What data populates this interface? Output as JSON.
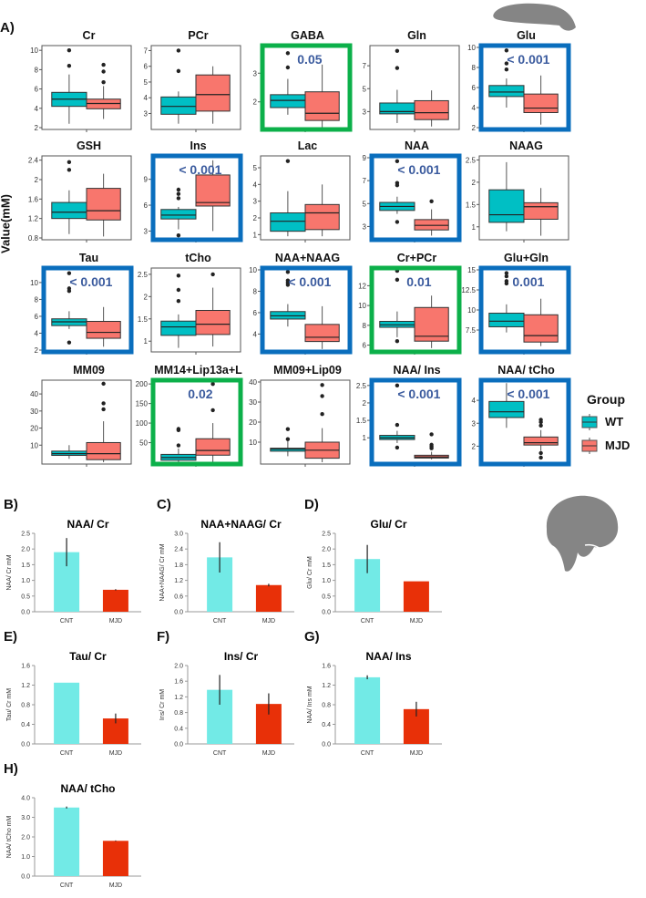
{
  "panel_labels": {
    "A": "A)",
    "B": "B)",
    "C": "C)",
    "D": "D)",
    "E": "E)",
    "F": "F)",
    "G": "G)",
    "H": "H)"
  },
  "y_axis_label": "Value(mM)",
  "legend": {
    "title": "Group",
    "items": [
      {
        "label": "WT",
        "color": "#00bfc4"
      },
      {
        "label": "MJD",
        "color": "#f8766d"
      }
    ]
  },
  "colors": {
    "wt": "#00bfc4",
    "mjd": "#f8766d",
    "sig_blue": "#0a6ebd",
    "sig_green": "#0cb04a",
    "pval_text": "#3b5b9e",
    "cnt_bar": "#72eae6",
    "mjd_bar": "#e83008",
    "brain": "#858585"
  },
  "chart_data": [
    {
      "type": "boxplot",
      "groups": [
        "WT",
        "MJD"
      ],
      "panels": [
        {
          "title": "Cr",
          "ylim": [
            2,
            10.3
          ],
          "ticks": [
            2,
            4,
            6,
            8,
            10
          ],
          "pval": null,
          "highlight": null,
          "wt": {
            "min": 2.4,
            "q1": 4.2,
            "median": 4.95,
            "q3": 5.65,
            "max": 7.5,
            "outliers": [
              8.4,
              10
            ]
          },
          "mjd": {
            "min": 2.9,
            "q1": 3.95,
            "median": 4.5,
            "q3": 4.95,
            "max": 6.3,
            "outliers": [
              6.7,
              7.8,
              8.5
            ]
          }
        },
        {
          "title": "PCr",
          "ylim": [
            2.1,
            7.2
          ],
          "ticks": [
            3,
            4,
            5,
            6,
            7
          ],
          "pval": null,
          "highlight": null,
          "wt": {
            "min": 2.35,
            "q1": 2.95,
            "median": 3.45,
            "q3": 4.05,
            "max": 4.4,
            "outliers": [
              5.7,
              7
            ]
          },
          "mjd": {
            "min": 2.35,
            "q1": 3.15,
            "median": 4.2,
            "q3": 5.45,
            "max": 6.0,
            "outliers": []
          }
        },
        {
          "title": "GABA",
          "ylim": [
            1.1,
            3.9
          ],
          "ticks": [
            2,
            3
          ],
          "pval": "0.05",
          "highlight": "green",
          "wt": {
            "min": 1.55,
            "q1": 1.8,
            "median": 2.05,
            "q3": 2.25,
            "max": 2.8,
            "outliers": [
              3.2,
              3.7
            ]
          },
          "mjd": {
            "min": 1.1,
            "q1": 1.35,
            "median": 1.6,
            "q3": 2.35,
            "max": 3.3,
            "outliers": []
          }
        },
        {
          "title": "Gln",
          "ylim": [
            1.6,
            8.6
          ],
          "ticks": [
            3,
            5,
            7
          ],
          "pval": null,
          "highlight": null,
          "wt": {
            "min": 2.0,
            "q1": 2.8,
            "median": 3.0,
            "q3": 3.75,
            "max": 4.9,
            "outliers": [
              6.8,
              8.3
            ]
          },
          "mjd": {
            "min": 1.7,
            "q1": 2.3,
            "median": 2.9,
            "q3": 3.95,
            "max": 4.85,
            "outliers": []
          }
        },
        {
          "title": "Glu",
          "ylim": [
            2,
            10
          ],
          "ticks": [
            2,
            4,
            6,
            8,
            10
          ],
          "pval": "< 0.001",
          "highlight": "blue",
          "wt": {
            "min": 4.0,
            "q1": 5.1,
            "median": 5.55,
            "q3": 6.2,
            "max": 6.9,
            "outliers": [
              7.8,
              8.4,
              9.7
            ]
          },
          "mjd": {
            "min": 2.3,
            "q1": 3.5,
            "median": 3.95,
            "q3": 5.35,
            "max": 7.2,
            "outliers": []
          }
        },
        {
          "title": "GSH",
          "ylim": [
            0.8,
            2.45
          ],
          "ticks": [
            0.8,
            1.2,
            1.6,
            2.0,
            2.4
          ],
          "pval": null,
          "highlight": null,
          "wt": {
            "min": 0.88,
            "q1": 1.2,
            "median": 1.33,
            "q3": 1.53,
            "max": 1.78,
            "outliers": [
              2.2,
              2.36
            ]
          },
          "mjd": {
            "min": 0.83,
            "q1": 1.17,
            "median": 1.36,
            "q3": 1.82,
            "max": 2.12,
            "outliers": []
          }
        },
        {
          "title": "Ins",
          "ylim": [
            2.2,
            11.5
          ],
          "ticks": [
            3,
            6,
            9
          ],
          "pval": "< 0.001",
          "highlight": "blue",
          "wt": {
            "min": 3.2,
            "q1": 4.4,
            "median": 4.85,
            "q3": 5.5,
            "max": 5.8,
            "outliers": [
              2.5,
              6.8,
              7.3,
              7.8
            ]
          },
          "mjd": {
            "min": 3.0,
            "q1": 5.9,
            "median": 6.3,
            "q3": 9.5,
            "max": 11.2,
            "outliers": []
          }
        },
        {
          "title": "Lac",
          "ylim": [
            0.8,
            5.6
          ],
          "ticks": [
            1,
            2,
            3,
            4,
            5
          ],
          "pval": null,
          "highlight": null,
          "wt": {
            "min": 0.9,
            "q1": 1.2,
            "median": 1.8,
            "q3": 2.3,
            "max": 3.6,
            "outliers": [
              5.4
            ]
          },
          "mjd": {
            "min": 0.9,
            "q1": 1.3,
            "median": 2.3,
            "q3": 2.8,
            "max": 4.0,
            "outliers": []
          }
        },
        {
          "title": "NAA",
          "ylim": [
            2,
            9
          ],
          "ticks": [
            3,
            5,
            7,
            9
          ],
          "pval": "< 0.001",
          "highlight": "blue",
          "wt": {
            "min": 4.1,
            "q1": 4.4,
            "median": 4.75,
            "q3": 5.1,
            "max": 5.6,
            "outliers": [
              3.4,
              6.6,
              6.8,
              8.7
            ]
          },
          "mjd": {
            "min": 2.2,
            "q1": 2.7,
            "median": 3.1,
            "q3": 3.6,
            "max": 4.5,
            "outliers": [
              5.2
            ]
          }
        },
        {
          "title": "NAAG",
          "ylim": [
            0.75,
            2.55
          ],
          "ticks": [
            1.0,
            1.5,
            2.0,
            2.5
          ],
          "pval": null,
          "highlight": null,
          "wt": {
            "min": 0.9,
            "q1": 1.1,
            "median": 1.27,
            "q3": 1.83,
            "max": 2.45,
            "outliers": []
          },
          "mjd": {
            "min": 0.8,
            "q1": 1.17,
            "median": 1.45,
            "q3": 1.54,
            "max": 1.87,
            "outliers": []
          }
        },
        {
          "title": "Tau",
          "ylim": [
            2,
            11.5
          ],
          "ticks": [
            2,
            4,
            6,
            8,
            10
          ],
          "pval": "< 0.001",
          "highlight": "blue",
          "wt": {
            "min": 4.5,
            "q1": 4.9,
            "median": 5.35,
            "q3": 5.7,
            "max": 6.6,
            "outliers": [
              2.9,
              9.0,
              9.3,
              11.1
            ]
          },
          "mjd": {
            "min": 2.4,
            "q1": 3.4,
            "median": 4.1,
            "q3": 5.4,
            "max": 7.1,
            "outliers": []
          }
        },
        {
          "title": "tCho",
          "ylim": [
            0.8,
            2.6
          ],
          "ticks": [
            1.0,
            1.5,
            2.0,
            2.5
          ],
          "pval": null,
          "highlight": null,
          "wt": {
            "min": 0.85,
            "q1": 1.13,
            "median": 1.32,
            "q3": 1.45,
            "max": 1.6,
            "outliers": [
              1.9,
              2.15,
              2.47
            ]
          },
          "mjd": {
            "min": 0.88,
            "q1": 1.15,
            "median": 1.38,
            "q3": 1.69,
            "max": 2.2,
            "outliers": [
              2.5
            ]
          }
        },
        {
          "title": "NAA+NAAG",
          "ylim": [
            2.5,
            10
          ],
          "ticks": [
            4,
            6,
            8,
            10
          ],
          "pval": "< 0.001",
          "highlight": "blue",
          "wt": {
            "min": 4.7,
            "q1": 5.4,
            "median": 5.7,
            "q3": 6.1,
            "max": 6.8,
            "outliers": [
              8.6,
              8.8,
              9.0,
              9.8
            ]
          },
          "mjd": {
            "min": 2.6,
            "q1": 3.3,
            "median": 3.7,
            "q3": 4.9,
            "max": 6.6,
            "outliers": []
          }
        },
        {
          "title": "Cr+PCr",
          "ylim": [
            5.5,
            13.6
          ],
          "ticks": [
            6,
            8,
            10,
            12
          ],
          "pval": "0.01",
          "highlight": "green",
          "wt": {
            "min": 6.8,
            "q1": 7.8,
            "median": 8.05,
            "q3": 8.4,
            "max": 9.4,
            "outliers": [
              6.4,
              12.6,
              13.5
            ]
          },
          "mjd": {
            "min": 5.7,
            "q1": 6.4,
            "median": 6.9,
            "q3": 9.8,
            "max": 11.0,
            "outliers": []
          }
        },
        {
          "title": "Glu+Gln",
          "ylim": [
            5,
            15
          ],
          "ticks": [
            7.5,
            10.0,
            12.5,
            15.0
          ],
          "pval": "0.001",
          "highlight": "blue",
          "wt": {
            "min": 7.2,
            "q1": 7.9,
            "median": 8.6,
            "q3": 9.6,
            "max": 10.7,
            "outliers": [
              13.3,
              13.6,
              14.2,
              14.6
            ]
          },
          "mjd": {
            "min": 5.5,
            "q1": 6.0,
            "median": 6.8,
            "q3": 9.4,
            "max": 11.4,
            "outliers": []
          }
        },
        {
          "title": "MM09",
          "ylim": [
            0,
            47
          ],
          "ticks": [
            10,
            20,
            30,
            40
          ],
          "pval": null,
          "highlight": null,
          "wt": {
            "min": 2,
            "q1": 4,
            "median": 5,
            "q3": 6.5,
            "max": 10,
            "outliers": []
          },
          "mjd": {
            "min": 0,
            "q1": 1.5,
            "median": 5,
            "q3": 11.5,
            "max": 24,
            "outliers": [
              31,
              34.5,
              46
            ]
          }
        },
        {
          "title": "MM14+Lip13a+L",
          "ylim": [
            0,
            205
          ],
          "ticks": [
            50,
            100,
            150,
            200
          ],
          "pval": "0.02",
          "highlight": "green",
          "wt": {
            "min": 0,
            "q1": 5,
            "median": 12,
            "q3": 20,
            "max": 35,
            "outliers": [
              43,
              82,
              85
            ]
          },
          "mjd": {
            "min": 0,
            "q1": 18,
            "median": 30,
            "q3": 60,
            "max": 100,
            "outliers": [
              133,
              200
            ]
          }
        },
        {
          "title": "MM09+Lip09",
          "ylim": [
            0,
            40
          ],
          "ticks": [
            10,
            20,
            30,
            40
          ],
          "pval": null,
          "highlight": null,
          "wt": {
            "min": 3,
            "q1": 5.5,
            "median": 6.5,
            "q3": 7,
            "max": 11,
            "outliers": [
              11.5,
              16.5
            ]
          },
          "mjd": {
            "min": 0,
            "q1": 2,
            "median": 6,
            "q3": 10,
            "max": 17,
            "outliers": [
              24,
              33,
              38.5
            ]
          }
        },
        {
          "title": "NAA/ Ins",
          "ylim": [
            0.3,
            2.6
          ],
          "ticks": [
            1.0,
            1.5,
            2.0,
            2.5
          ],
          "pval": "< 0.001",
          "highlight": "blue",
          "wt": {
            "min": 0.85,
            "q1": 0.95,
            "median": 1.0,
            "q3": 1.07,
            "max": 1.2,
            "outliers": [
              0.72,
              1.37,
              2.5
            ]
          },
          "mjd": {
            "min": 0.38,
            "q1": 0.42,
            "median": 0.45,
            "q3": 0.5,
            "max": 0.6,
            "outliers": [
              0.7,
              0.75,
              0.8,
              1.1
            ]
          }
        },
        {
          "title": "NAA/ tCho",
          "ylim": [
            1.3,
            4.8
          ],
          "ticks": [
            2,
            3,
            4
          ],
          "pval": "< 0.001",
          "highlight": "blue",
          "wt": {
            "min": 2.8,
            "q1": 3.25,
            "median": 3.5,
            "q3": 3.95,
            "max": 4.75,
            "outliers": []
          },
          "mjd": {
            "min": 1.8,
            "q1": 2.05,
            "median": 2.15,
            "q3": 2.4,
            "max": 2.7,
            "outliers": [
              1.5,
              1.7,
              2.9,
              3.05,
              3.15
            ]
          }
        }
      ]
    },
    {
      "type": "bar",
      "categories": [
        "CNT",
        "MJD"
      ],
      "panels": [
        {
          "label": "B)",
          "title": "NAA/ Cr",
          "ylabel": "NAA/ Cr mM",
          "ylim": [
            0,
            2.5
          ],
          "ticks": [
            "0.0",
            "0.5",
            "1.0",
            "1.5",
            "2.0",
            "2.5"
          ],
          "values": [
            1.9,
            0.7
          ],
          "errors": [
            0.45,
            0.02
          ]
        },
        {
          "label": "C)",
          "title": "NAA+NAAG/ Cr",
          "ylabel": "NAA+NAAG/ Cr mM",
          "ylim": [
            0,
            3.0
          ],
          "ticks": [
            "0.0",
            "0.6",
            "1.2",
            "1.8",
            "2.4",
            "3.0"
          ],
          "values": [
            2.08,
            1.02
          ],
          "errors": [
            0.58,
            0.05
          ]
        },
        {
          "label": "D)",
          "title": "Glu/ Cr",
          "ylabel": "Glu/ Cr mM",
          "ylim": [
            0,
            2.5
          ],
          "ticks": [
            "0.0",
            "0.5",
            "1.0",
            "1.5",
            "2.0",
            "2.5"
          ],
          "values": [
            1.68,
            0.97
          ],
          "errors": [
            0.45,
            0
          ]
        },
        {
          "label": "E)",
          "title": "Tau/ Cr",
          "ylabel": "Tau/ Cr mM",
          "ylim": [
            0,
            1.6
          ],
          "ticks": [
            "0.0",
            "0.4",
            "0.8",
            "1.2",
            "1.6"
          ],
          "values": [
            1.25,
            0.52
          ],
          "errors": [
            0,
            0.1
          ]
        },
        {
          "label": "F)",
          "title": "Ins/ Cr",
          "ylabel": "Ins/ Cr mM",
          "ylim": [
            0,
            2.0
          ],
          "ticks": [
            "0.0",
            "0.4",
            "0.8",
            "1.2",
            "1.6",
            "2.0"
          ],
          "values": [
            1.38,
            1.02
          ],
          "errors": [
            0.38,
            0.27
          ]
        },
        {
          "label": "G)",
          "title": "NAA/ Ins",
          "ylabel": "NAA/ Ins mM",
          "ylim": [
            0,
            1.6
          ],
          "ticks": [
            "0.0",
            "0.4",
            "0.8",
            "1.2",
            "1.6"
          ],
          "values": [
            1.36,
            0.71
          ],
          "errors": [
            0.04,
            0.15
          ]
        },
        {
          "label": "H)",
          "title": "NAA/ tCho",
          "ylabel": "NAA/ tCho mM",
          "ylim": [
            0,
            4.0
          ],
          "ticks": [
            "0.0",
            "1.0",
            "2.0",
            "3.0",
            "4.0"
          ],
          "values": [
            3.5,
            1.8
          ],
          "errors": [
            0.05,
            0.02
          ]
        }
      ]
    }
  ]
}
